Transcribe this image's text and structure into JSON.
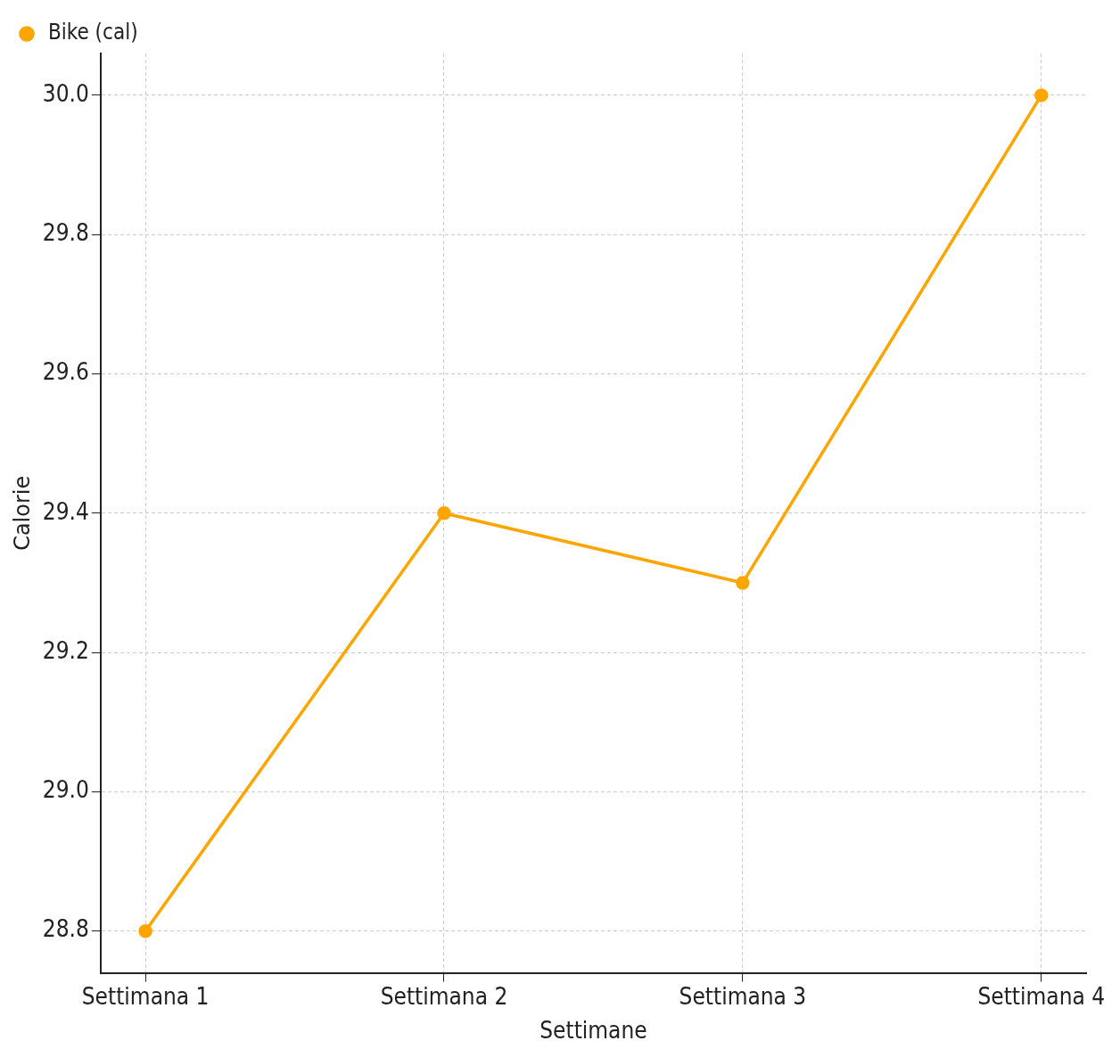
{
  "chart_data": {
    "type": "line",
    "xlabel": "Settimane",
    "ylabel": "Calorie",
    "categories": [
      "Settimana 1",
      "Settimana 2",
      "Settimana 3",
      "Settimana 4"
    ],
    "series": [
      {
        "name": "Bike (cal)",
        "color": "#ffa500",
        "values": [
          28.8,
          29.4,
          29.3,
          30.0
        ]
      }
    ],
    "ylim": [
      28.74,
      30.06
    ],
    "yticks": [
      {
        "value": 28.8,
        "label": "28.8"
      },
      {
        "value": 29.0,
        "label": "29.0"
      },
      {
        "value": 29.2,
        "label": "29.2"
      },
      {
        "value": 29.4,
        "label": "29.4"
      },
      {
        "value": 29.6,
        "label": "29.6"
      },
      {
        "value": 29.8,
        "label": "29.8"
      },
      {
        "value": 30.0,
        "label": "30.0"
      }
    ],
    "grid": true,
    "legend": "top left",
    "marker": "circle",
    "line_style": "solid"
  }
}
